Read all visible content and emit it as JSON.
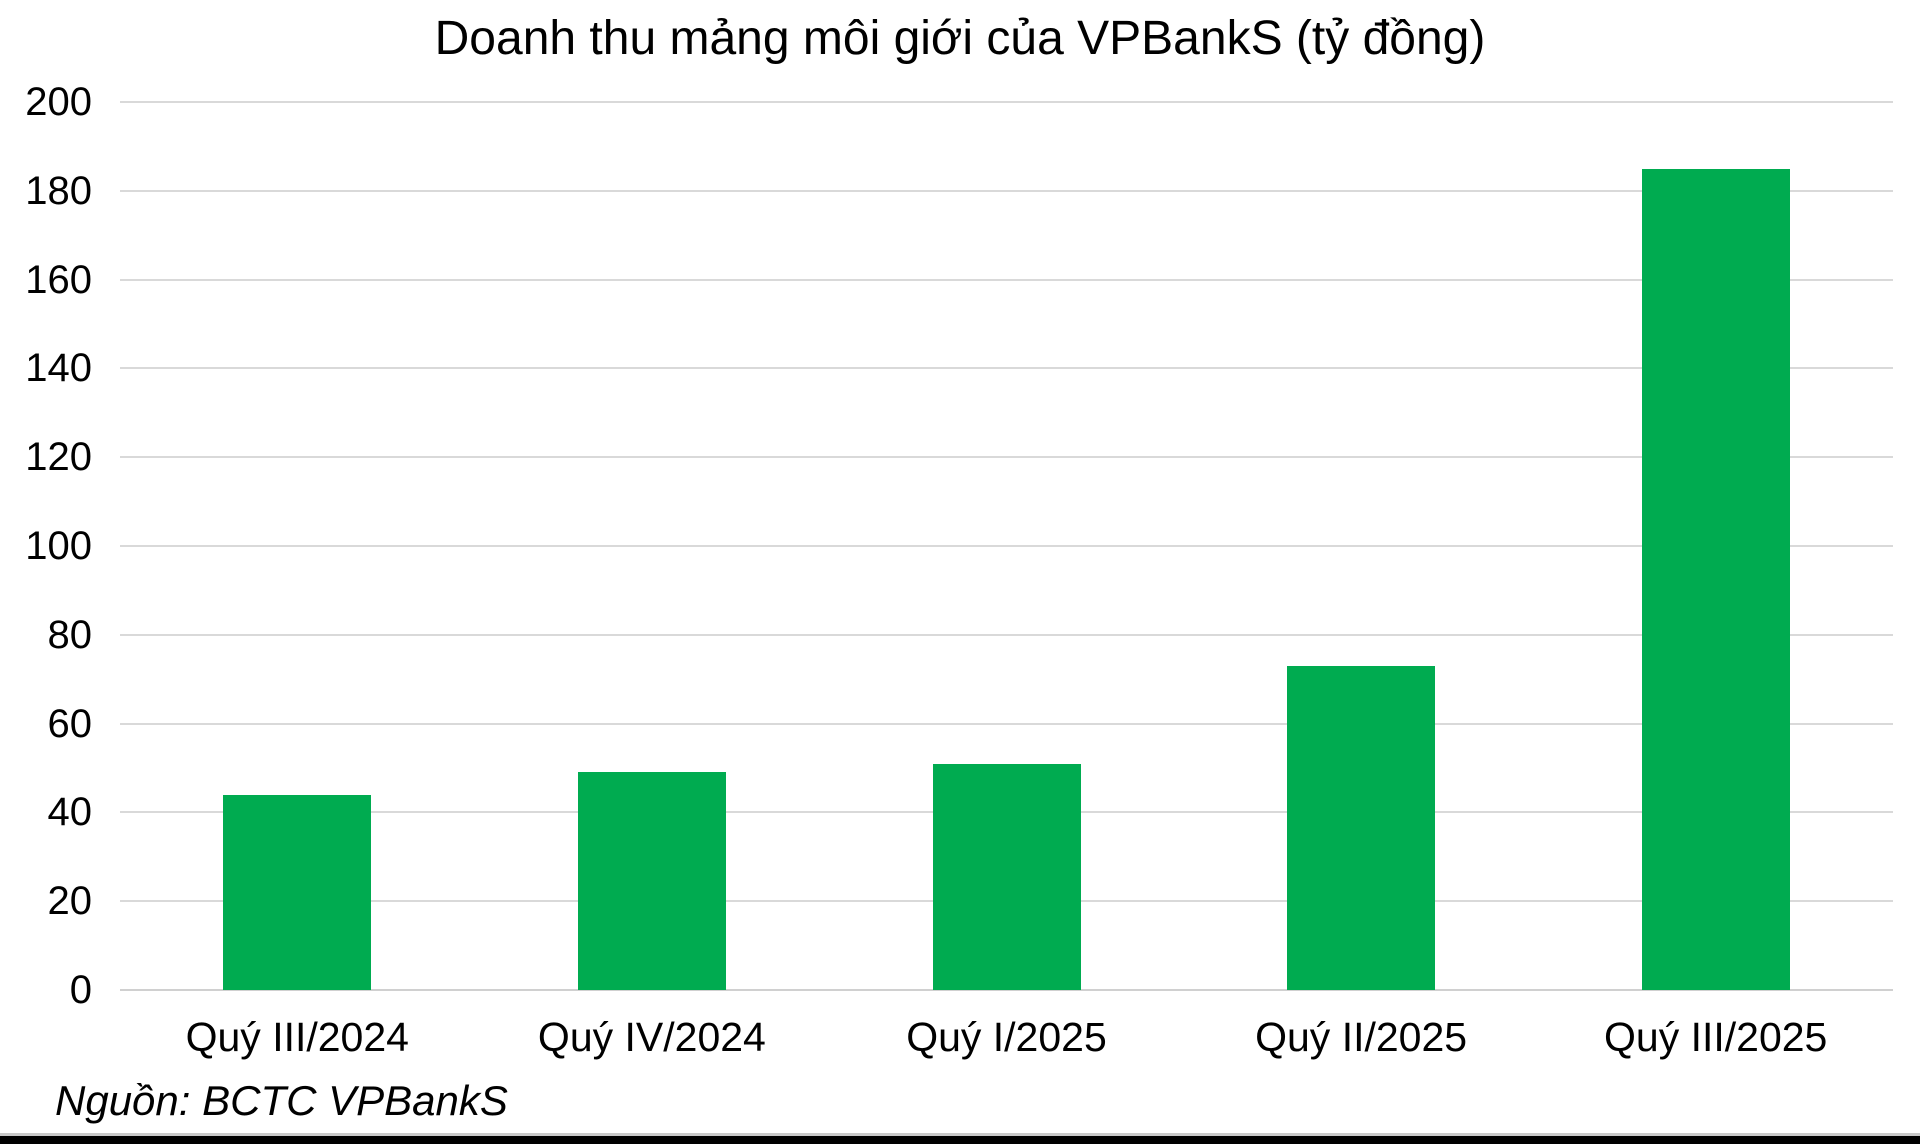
{
  "chart_data": {
    "type": "bar",
    "title": "Doanh thu mảng môi giới của VPBankS (tỷ đồng)",
    "categories": [
      "Quý III/2024",
      "Quý IV/2024",
      "Quý I/2025",
      "Quý II/2025",
      "Quý III/2025"
    ],
    "values": [
      44,
      49,
      51,
      73,
      185
    ],
    "ylabel": "",
    "xlabel": "",
    "ylim": [
      0,
      200
    ],
    "yticks": [
      0,
      20,
      40,
      60,
      80,
      100,
      120,
      140,
      160,
      180,
      200
    ],
    "grid": "horizontal",
    "legend": "none",
    "bar_color": "#00AB50",
    "gridline_color": "#D9D9D9",
    "axisline_color": "#D0D0D0",
    "text_color": "#000000",
    "source_note": "Nguồn: BCTC VPBankS"
  },
  "footer": {
    "divider_color": "#C9C9C9",
    "bar_color": "#000000"
  }
}
